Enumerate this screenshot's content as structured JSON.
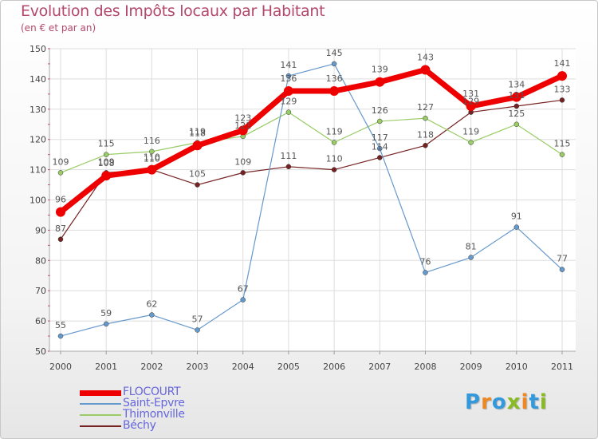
{
  "title": "Evolution des Impôts locaux par Habitant",
  "subtitle": "(en € et par an)",
  "logo": {
    "text": "Proxiti",
    "colors": [
      "#3399dd",
      "#ee8822",
      "#3399dd",
      "#88bb22",
      "#ee8822",
      "#3399dd",
      "#88bb22"
    ]
  },
  "chart_data": {
    "type": "line",
    "x": [
      "2000",
      "2001",
      "2002",
      "2003",
      "2004",
      "2005",
      "2006",
      "2007",
      "2008",
      "2009",
      "2010",
      "2011"
    ],
    "ylim": [
      50,
      150
    ],
    "yticks": [
      "50",
      "60",
      "70",
      "80",
      "90",
      "100",
      "110",
      "120",
      "130",
      "140",
      "150"
    ],
    "grid": true,
    "legend_position": "bottom-left",
    "series": [
      {
        "name": "FLOCOURT",
        "color": "#ee0000",
        "values": [
          96,
          108,
          110,
          118,
          123,
          136,
          136,
          139,
          143,
          131,
          134,
          141
        ],
        "labels": [
          "96",
          "108",
          "110",
          "118",
          "123",
          "136",
          "136",
          "139",
          "143",
          "131",
          "134",
          "141"
        ]
      },
      {
        "name": "Saint-Epvre",
        "color": "#6699cc",
        "values": [
          55,
          59,
          62,
          57,
          67,
          141,
          145,
          117,
          76,
          81,
          91,
          77
        ],
        "labels": [
          "55",
          "59",
          "62",
          "57",
          "67",
          "141",
          "145",
          "117",
          "76",
          "81",
          "91",
          "77"
        ]
      },
      {
        "name": "Thimonville",
        "color": "#99cc66",
        "values": [
          109,
          115,
          116,
          119,
          121,
          129,
          119,
          126,
          127,
          119,
          125,
          115
        ],
        "labels": [
          "109",
          "115",
          "116",
          "119",
          "121",
          "129",
          "119",
          "126",
          "127",
          "119",
          "125",
          "115"
        ]
      },
      {
        "name": "Béchy",
        "color": "#772222",
        "values": [
          87,
          109,
          110,
          105,
          109,
          111,
          110,
          114,
          118,
          129,
          131,
          133
        ],
        "labels": [
          "87",
          "109",
          "110",
          "105",
          "109",
          "111",
          "110",
          "114",
          "118",
          "129",
          "131",
          "133"
        ]
      }
    ]
  }
}
